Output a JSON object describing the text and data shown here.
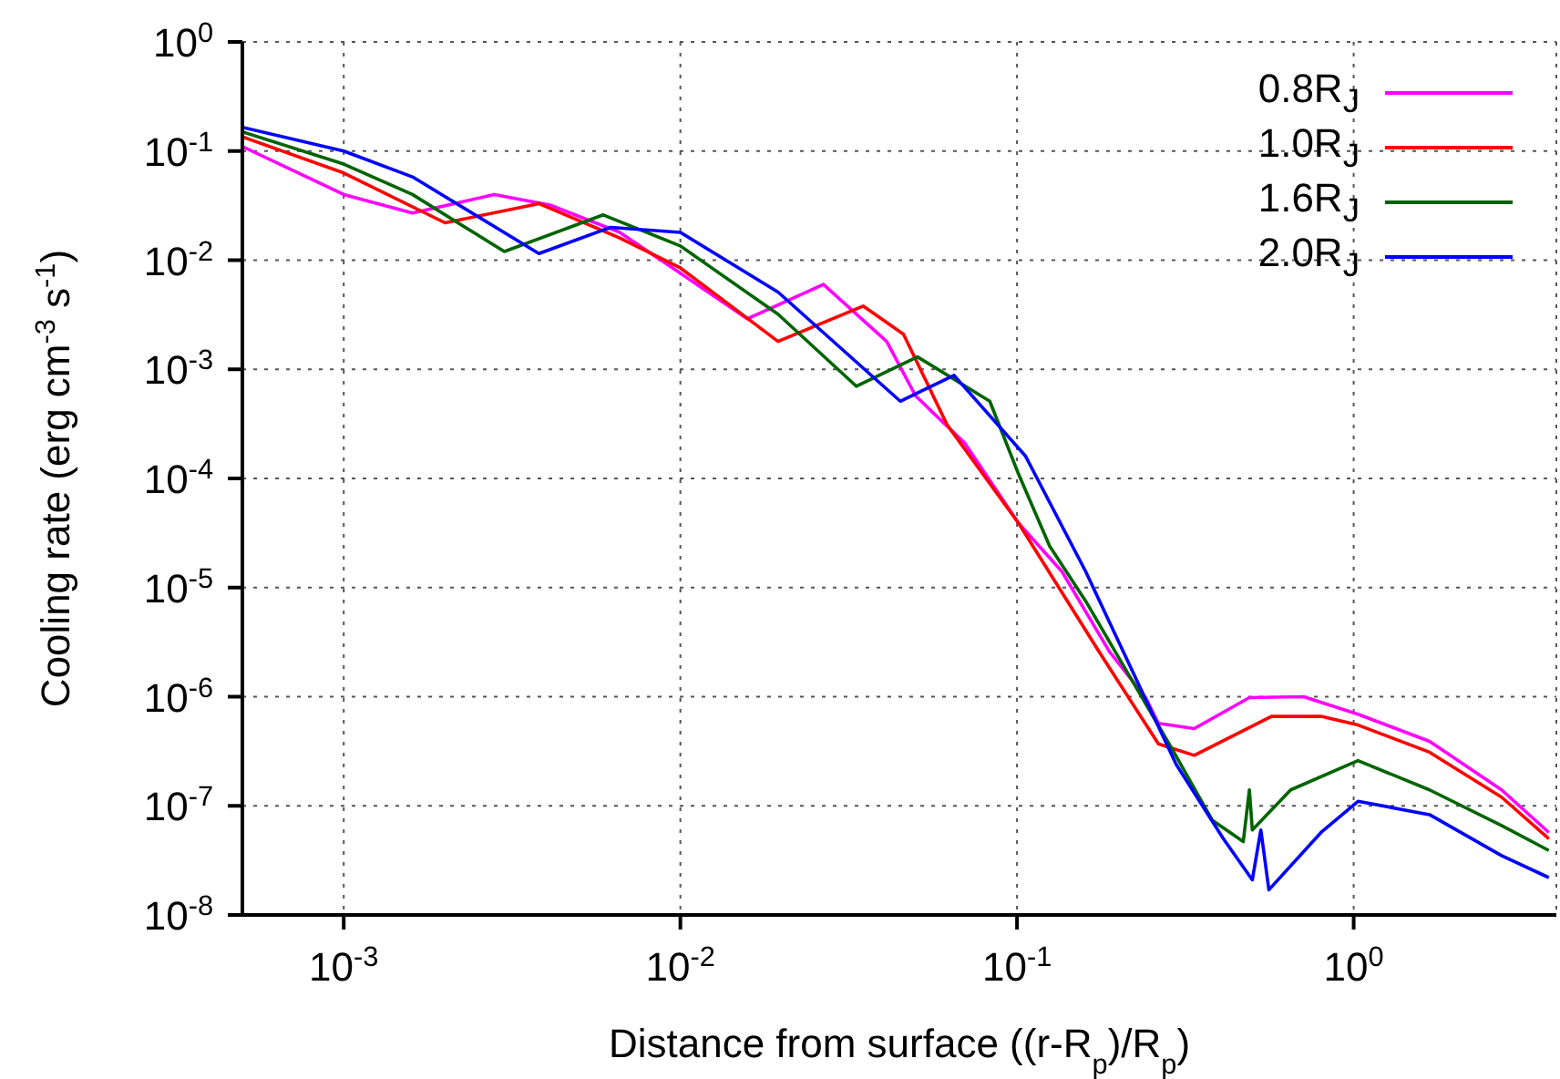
{
  "chart_data": {
    "type": "line",
    "xlabel": "Distance from surface ((r-R$_{p}$)/R$_{p}$)",
    "ylabel": "Cooling rate (erg cm$^{-3}$ s$^{-1}$)",
    "log": "xy",
    "grid": true,
    "legend": "top right",
    "xlim": [
      0.0005,
      4
    ],
    "xticks": [
      {
        "value": 0.001,
        "label": "10$^{-3}$"
      },
      {
        "value": 0.01,
        "label": "10$^{-2}$"
      },
      {
        "value": 0.1,
        "label": "10$^{-1}$"
      },
      {
        "value": 1,
        "label": "10$^{0}$"
      }
    ],
    "ylim": [
      1e-08,
      1
    ],
    "yticks": [
      {
        "value": 1e-08,
        "label": "10$^{-8}$"
      },
      {
        "value": 1e-07,
        "label": "10$^{-7}$"
      },
      {
        "value": 1e-06,
        "label": "10$^{-6}$"
      },
      {
        "value": 1e-05,
        "label": "10$^{-5}$"
      },
      {
        "value": 0.0001,
        "label": "10$^{-4}$"
      },
      {
        "value": 0.001,
        "label": "10$^{-3}$"
      },
      {
        "value": 0.01,
        "label": "10$^{-2}$"
      },
      {
        "value": 0.1,
        "label": "10$^{-1}$"
      },
      {
        "value": 1,
        "label": "10$^{0}$"
      }
    ],
    "series": [
      {
        "name": "0.8R$_{J}$",
        "color": "#ff00ff",
        "x": [
          0.0005,
          0.001,
          0.0016,
          0.0028,
          0.0041,
          0.0066,
          0.01,
          0.0158,
          0.0266,
          0.041,
          0.05,
          0.07,
          0.101,
          0.136,
          0.188,
          0.241,
          0.263,
          0.336,
          0.49,
          0.71,
          1.03,
          1.68,
          2.75,
          3.8
        ],
        "values": [
          0.11,
          0.04,
          0.027,
          0.04,
          0.032,
          0.018,
          0.0076,
          0.0029,
          0.006,
          0.0018,
          0.00057,
          0.00021,
          3.9e-05,
          1.4e-05,
          2.6e-06,
          9.8e-07,
          5.7e-07,
          5.1e-07,
          9.8e-07,
          1e-06,
          6.9e-07,
          3.9e-07,
          1.4e-07,
          5.7e-08
        ]
      },
      {
        "name": "1.0R$_{J}$",
        "color": "#ff0000",
        "x": [
          0.0005,
          0.001,
          0.002,
          0.0038,
          0.0066,
          0.01,
          0.0195,
          0.0349,
          0.046,
          0.062,
          0.101,
          0.175,
          0.263,
          0.336,
          0.57,
          0.8,
          1.03,
          1.68,
          2.75,
          3.8
        ],
        "values": [
          0.135,
          0.063,
          0.022,
          0.033,
          0.016,
          0.0085,
          0.0018,
          0.0038,
          0.0021,
          0.00031,
          3.9e-05,
          2.6e-06,
          3.7e-07,
          2.9e-07,
          6.6e-07,
          6.6e-07,
          5.5e-07,
          3.1e-07,
          1.2e-07,
          5e-08
        ]
      },
      {
        "name": "1.6R$_{J}$",
        "color": "#006400",
        "x": [
          0.0005,
          0.001,
          0.0016,
          0.003,
          0.0059,
          0.01,
          0.0195,
          0.0333,
          0.0506,
          0.083,
          0.101,
          0.125,
          0.16,
          0.286,
          0.38,
          0.47,
          0.49,
          0.5,
          0.65,
          1.03,
          1.68,
          2.75,
          3.8
        ],
        "values": [
          0.15,
          0.076,
          0.04,
          0.012,
          0.026,
          0.0135,
          0.0032,
          0.0007,
          0.0013,
          0.00051,
          0.00011,
          2.4e-05,
          7.5e-06,
          3.5e-07,
          7.4e-08,
          4.7e-08,
          1.4e-07,
          6e-08,
          1.4e-07,
          2.6e-07,
          1.4e-07,
          6.6e-08,
          3.9e-08
        ]
      },
      {
        "name": "2.0R$_{J}$",
        "color": "#0000ff",
        "x": [
          0.0005,
          0.001,
          0.0016,
          0.0038,
          0.0062,
          0.01,
          0.0195,
          0.045,
          0.065,
          0.106,
          0.16,
          0.297,
          0.41,
          0.5,
          0.53,
          0.56,
          0.8,
          1.03,
          1.68,
          2.75,
          3.8
        ],
        "values": [
          0.165,
          0.1,
          0.058,
          0.0115,
          0.02,
          0.018,
          0.0051,
          0.00051,
          0.00088,
          0.00016,
          1.4e-05,
          2.4e-07,
          5e-08,
          2.1e-08,
          6e-08,
          1.7e-08,
          5.7e-08,
          1.1e-07,
          8.3e-08,
          3.5e-08,
          2.2e-08
        ]
      }
    ]
  }
}
